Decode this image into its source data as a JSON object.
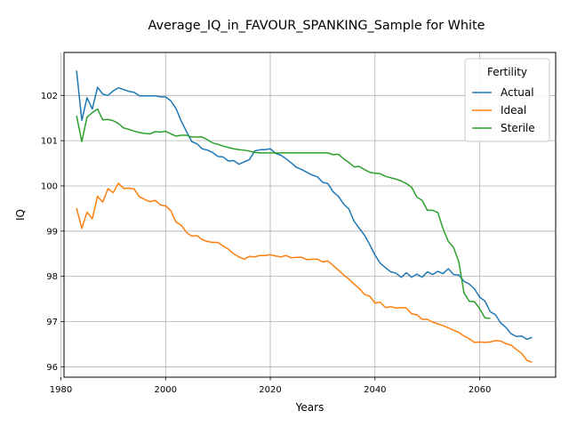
{
  "chart_data": {
    "type": "line",
    "title": "Average_IQ_in_FAVOUR_SPANKING_Sample for White",
    "xlabel": "Years",
    "ylabel": "IQ",
    "xlim": [
      1980.6,
      2074.5
    ],
    "ylim": [
      95.77,
      102.95
    ],
    "xticks": [
      1980,
      2000,
      2020,
      2040,
      2060
    ],
    "yticks": [
      96,
      97,
      98,
      99,
      100,
      101,
      102
    ],
    "grid": true,
    "legend": {
      "title": "Fertility",
      "position": "top-right"
    },
    "series": [
      {
        "name": "Actual",
        "color": "#1f77b4",
        "points": [
          [
            1983,
            102.55
          ],
          [
            1984,
            101.45
          ],
          [
            1985,
            101.95
          ],
          [
            1986,
            101.7
          ],
          [
            1987,
            102.18
          ],
          [
            1988,
            102.03
          ],
          [
            1989,
            102.0
          ],
          [
            1990,
            102.1
          ],
          [
            1991,
            102.17
          ],
          [
            1992,
            102.13
          ],
          [
            1993,
            102.09
          ],
          [
            1994,
            102.07
          ],
          [
            1995,
            101.99
          ],
          [
            1996,
            101.99
          ],
          [
            1997,
            101.99
          ],
          [
            1998,
            101.99
          ],
          [
            1999,
            101.97
          ],
          [
            2000,
            101.97
          ],
          [
            2001,
            101.88
          ],
          [
            2002,
            101.71
          ],
          [
            2003,
            101.43
          ],
          [
            2004,
            101.2
          ],
          [
            2005,
            100.98
          ],
          [
            2006,
            100.93
          ],
          [
            2007,
            100.82
          ],
          [
            2008,
            100.79
          ],
          [
            2009,
            100.74
          ],
          [
            2010,
            100.65
          ],
          [
            2011,
            100.64
          ],
          [
            2012,
            100.55
          ],
          [
            2013,
            100.56
          ],
          [
            2014,
            100.48
          ],
          [
            2015,
            100.53
          ],
          [
            2016,
            100.58
          ],
          [
            2017,
            100.77
          ],
          [
            2018,
            100.8
          ],
          [
            2019,
            100.8
          ],
          [
            2020,
            100.82
          ],
          [
            2021,
            100.72
          ],
          [
            2022,
            100.68
          ],
          [
            2023,
            100.6
          ],
          [
            2024,
            100.51
          ],
          [
            2025,
            100.41
          ],
          [
            2026,
            100.36
          ],
          [
            2027,
            100.3
          ],
          [
            2028,
            100.24
          ],
          [
            2029,
            100.2
          ],
          [
            2030,
            100.08
          ],
          [
            2031,
            100.05
          ],
          [
            2032,
            99.87
          ],
          [
            2033,
            99.77
          ],
          [
            2034,
            99.6
          ],
          [
            2035,
            99.49
          ],
          [
            2036,
            99.22
          ],
          [
            2037,
            99.06
          ],
          [
            2038,
            98.91
          ],
          [
            2039,
            98.7
          ],
          [
            2040,
            98.47
          ],
          [
            2041,
            98.29
          ],
          [
            2042,
            98.19
          ],
          [
            2043,
            98.1
          ],
          [
            2044,
            98.07
          ],
          [
            2045,
            97.98
          ],
          [
            2046,
            98.08
          ],
          [
            2047,
            97.98
          ],
          [
            2048,
            98.05
          ],
          [
            2049,
            97.98
          ],
          [
            2050,
            98.1
          ],
          [
            2051,
            98.04
          ],
          [
            2052,
            98.11
          ],
          [
            2053,
            98.06
          ],
          [
            2054,
            98.17
          ],
          [
            2055,
            98.04
          ],
          [
            2056,
            98.03
          ],
          [
            2057,
            97.89
          ],
          [
            2058,
            97.83
          ],
          [
            2059,
            97.72
          ],
          [
            2060,
            97.54
          ],
          [
            2061,
            97.45
          ],
          [
            2062,
            97.22
          ],
          [
            2063,
            97.15
          ],
          [
            2064,
            96.97
          ],
          [
            2065,
            96.87
          ],
          [
            2066,
            96.73
          ],
          [
            2067,
            96.67
          ],
          [
            2068,
            96.68
          ],
          [
            2069,
            96.61
          ],
          [
            2070,
            96.65
          ]
        ]
      },
      {
        "name": "Ideal",
        "color": "#ff7f0e",
        "points": [
          [
            1983,
            99.51
          ],
          [
            1984,
            99.06
          ],
          [
            1985,
            99.42
          ],
          [
            1986,
            99.27
          ],
          [
            1987,
            99.77
          ],
          [
            1988,
            99.64
          ],
          [
            1989,
            99.94
          ],
          [
            1990,
            99.85
          ],
          [
            1991,
            100.06
          ],
          [
            1992,
            99.94
          ],
          [
            1993,
            99.95
          ],
          [
            1994,
            99.93
          ],
          [
            1995,
            99.76
          ],
          [
            1996,
            99.7
          ],
          [
            1997,
            99.65
          ],
          [
            1998,
            99.68
          ],
          [
            1999,
            99.58
          ],
          [
            2000,
            99.56
          ],
          [
            2001,
            99.45
          ],
          [
            2002,
            99.2
          ],
          [
            2003,
            99.13
          ],
          [
            2004,
            98.97
          ],
          [
            2005,
            98.89
          ],
          [
            2006,
            98.9
          ],
          [
            2007,
            98.81
          ],
          [
            2008,
            98.77
          ],
          [
            2009,
            98.75
          ],
          [
            2010,
            98.75
          ],
          [
            2011,
            98.67
          ],
          [
            2012,
            98.6
          ],
          [
            2013,
            98.5
          ],
          [
            2014,
            98.43
          ],
          [
            2015,
            98.38
          ],
          [
            2016,
            98.44
          ],
          [
            2017,
            98.43
          ],
          [
            2018,
            98.46
          ],
          [
            2019,
            98.46
          ],
          [
            2020,
            98.48
          ],
          [
            2021,
            98.45
          ],
          [
            2022,
            98.43
          ],
          [
            2023,
            98.46
          ],
          [
            2024,
            98.41
          ],
          [
            2025,
            98.42
          ],
          [
            2026,
            98.42
          ],
          [
            2027,
            98.37
          ],
          [
            2028,
            98.38
          ],
          [
            2029,
            98.38
          ],
          [
            2030,
            98.32
          ],
          [
            2031,
            98.34
          ],
          [
            2032,
            98.24
          ],
          [
            2033,
            98.14
          ],
          [
            2034,
            98.03
          ],
          [
            2035,
            97.94
          ],
          [
            2036,
            97.83
          ],
          [
            2037,
            97.73
          ],
          [
            2038,
            97.6
          ],
          [
            2039,
            97.56
          ],
          [
            2040,
            97.41
          ],
          [
            2041,
            97.43
          ],
          [
            2042,
            97.31
          ],
          [
            2043,
            97.33
          ],
          [
            2044,
            97.3
          ],
          [
            2045,
            97.31
          ],
          [
            2046,
            97.3
          ],
          [
            2047,
            97.17
          ],
          [
            2048,
            97.15
          ],
          [
            2049,
            97.05
          ],
          [
            2050,
            97.05
          ],
          [
            2051,
            96.99
          ],
          [
            2052,
            96.95
          ],
          [
            2053,
            96.91
          ],
          [
            2054,
            96.86
          ],
          [
            2055,
            96.81
          ],
          [
            2056,
            96.76
          ],
          [
            2057,
            96.68
          ],
          [
            2058,
            96.62
          ],
          [
            2059,
            96.54
          ],
          [
            2060,
            96.55
          ],
          [
            2061,
            96.54
          ],
          [
            2062,
            96.55
          ],
          [
            2063,
            96.58
          ],
          [
            2064,
            96.57
          ],
          [
            2065,
            96.51
          ],
          [
            2066,
            96.48
          ],
          [
            2067,
            96.38
          ],
          [
            2068,
            96.3
          ],
          [
            2069,
            96.14
          ],
          [
            2070,
            96.1
          ]
        ]
      },
      {
        "name": "Sterile",
        "color": "#2ca02c",
        "points": [
          [
            1983,
            101.55
          ],
          [
            1984,
            100.98
          ],
          [
            1985,
            101.52
          ],
          [
            1986,
            101.62
          ],
          [
            1987,
            101.7
          ],
          [
            1988,
            101.46
          ],
          [
            1989,
            101.47
          ],
          [
            1990,
            101.44
          ],
          [
            1991,
            101.38
          ],
          [
            1992,
            101.28
          ],
          [
            1993,
            101.25
          ],
          [
            1994,
            101.21
          ],
          [
            1995,
            101.18
          ],
          [
            1996,
            101.16
          ],
          [
            1997,
            101.15
          ],
          [
            1998,
            101.2
          ],
          [
            1999,
            101.19
          ],
          [
            2000,
            101.21
          ],
          [
            2001,
            101.15
          ],
          [
            2002,
            101.1
          ],
          [
            2003,
            101.12
          ],
          [
            2004,
            101.12
          ],
          [
            2005,
            101.08
          ],
          [
            2006,
            101.08
          ],
          [
            2007,
            101.08
          ],
          [
            2008,
            101.02
          ],
          [
            2009,
            100.95
          ],
          [
            2010,
            100.92
          ],
          [
            2011,
            100.88
          ],
          [
            2012,
            100.85
          ],
          [
            2013,
            100.82
          ],
          [
            2014,
            100.8
          ],
          [
            2015,
            100.79
          ],
          [
            2016,
            100.77
          ],
          [
            2017,
            100.74
          ],
          [
            2018,
            100.73
          ],
          [
            2019,
            100.73
          ],
          [
            2020,
            100.73
          ],
          [
            2021,
            100.73
          ],
          [
            2022,
            100.73
          ],
          [
            2023,
            100.73
          ],
          [
            2024,
            100.73
          ],
          [
            2025,
            100.73
          ],
          [
            2026,
            100.73
          ],
          [
            2027,
            100.73
          ],
          [
            2028,
            100.73
          ],
          [
            2029,
            100.73
          ],
          [
            2030,
            100.73
          ],
          [
            2031,
            100.73
          ],
          [
            2032,
            100.69
          ],
          [
            2033,
            100.7
          ],
          [
            2034,
            100.6
          ],
          [
            2035,
            100.52
          ],
          [
            2036,
            100.42
          ],
          [
            2037,
            100.43
          ],
          [
            2038,
            100.36
          ],
          [
            2039,
            100.3
          ],
          [
            2040,
            100.28
          ],
          [
            2041,
            100.27
          ],
          [
            2042,
            100.21
          ],
          [
            2043,
            100.18
          ],
          [
            2044,
            100.15
          ],
          [
            2045,
            100.11
          ],
          [
            2046,
            100.05
          ],
          [
            2047,
            99.97
          ],
          [
            2048,
            99.75
          ],
          [
            2049,
            99.68
          ],
          [
            2050,
            99.46
          ],
          [
            2051,
            99.46
          ],
          [
            2052,
            99.41
          ],
          [
            2053,
            99.05
          ],
          [
            2054,
            98.77
          ],
          [
            2055,
            98.64
          ],
          [
            2056,
            98.32
          ],
          [
            2057,
            97.63
          ],
          [
            2058,
            97.45
          ],
          [
            2059,
            97.44
          ],
          [
            2060,
            97.28
          ],
          [
            2061,
            97.08
          ],
          [
            2062,
            97.07
          ]
        ]
      }
    ]
  }
}
